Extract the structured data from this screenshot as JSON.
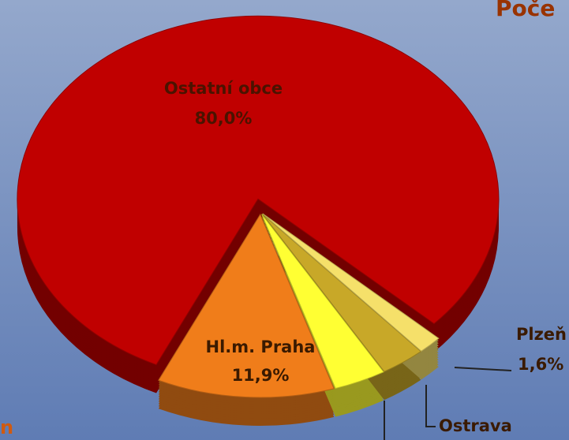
{
  "chart_data": {
    "type": "pie",
    "title": "Poče",
    "side_text": "n",
    "categories": [
      "Ostatní obce",
      "Hl.m. Praha",
      null,
      "Ostrava",
      "Plzeň"
    ],
    "values": [
      80.0,
      11.9,
      3.5,
      3.0,
      1.6
    ],
    "value_labels": [
      "80,0%",
      "11,9%",
      null,
      null,
      "1,6%"
    ],
    "colors": [
      "#c00000",
      "#f07d1a",
      "#ffff33",
      "#c8a828",
      "#f5e06a"
    ]
  }
}
